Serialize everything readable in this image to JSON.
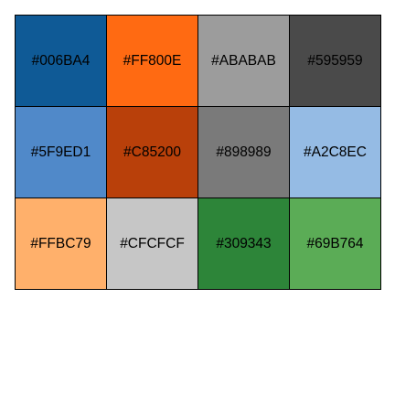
{
  "palette": {
    "swatches": [
      {
        "label": "#006BA4",
        "color": "#0F5A96"
      },
      {
        "label": "#FF800E",
        "color": "#FF6A12"
      },
      {
        "label": "#ABABAB",
        "color": "#9C9C9C"
      },
      {
        "label": "#595959",
        "color": "#4A4A4A"
      },
      {
        "label": "#5F9ED1",
        "color": "#5089C9"
      },
      {
        "label": "#C85200",
        "color": "#B9400A"
      },
      {
        "label": "#898989",
        "color": "#7A7A7A"
      },
      {
        "label": "#A2C8EC",
        "color": "#95BBE4"
      },
      {
        "label": "#FFBC79",
        "color": "#FFB06B"
      },
      {
        "label": "#CFCFCF",
        "color": "#C6C6C6"
      },
      {
        "label": "#309343",
        "color": "#2D8539"
      },
      {
        "label": "#69B764",
        "color": "#5BAC56"
      }
    ]
  }
}
